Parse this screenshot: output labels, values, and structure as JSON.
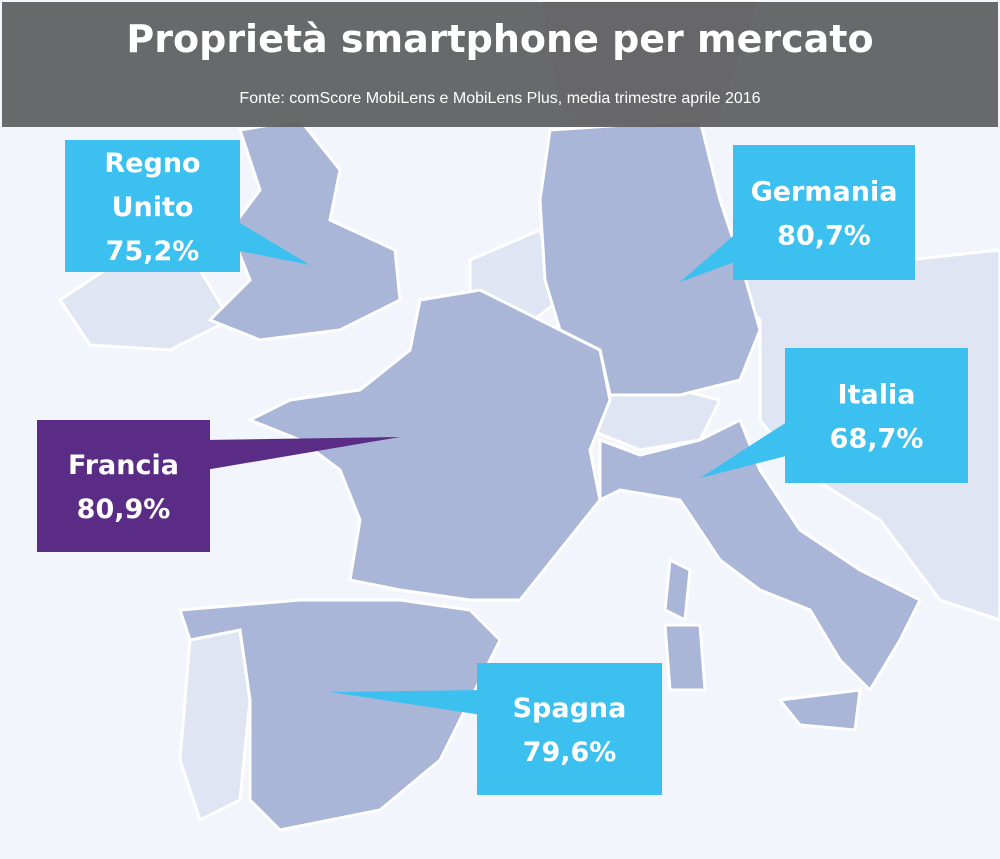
{
  "header": {
    "title": "Proprietà smartphone per mercato",
    "subtitle": "Fonte: comScore MobiLens e MobiLens Plus, media trimestre aprile 2016"
  },
  "callouts": [
    {
      "name": [
        "Regno",
        "Unito"
      ],
      "value": "75,2%"
    },
    {
      "name": [
        "Germania"
      ],
      "value": "80,7%"
    },
    {
      "name": [
        "Francia"
      ],
      "value": "80,9%"
    },
    {
      "name": [
        "Italia"
      ],
      "value": "68,7%"
    },
    {
      "name": [
        "Spagna"
      ],
      "value": "79,6%"
    }
  ]
}
